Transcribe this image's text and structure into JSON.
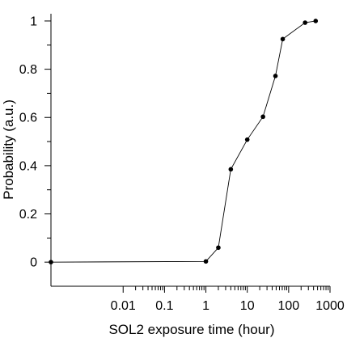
{
  "chart_data": {
    "type": "line",
    "xlabel": "SOL2 exposure time (hour)",
    "ylabel": "Probability (a.u.)",
    "x_scale": "log",
    "xlim": [
      0.00018,
      1000
    ],
    "ylim": [
      -0.1,
      1.03
    ],
    "x_ticks": [
      {
        "value": 0.01,
        "label": "0.01"
      },
      {
        "value": 0.1,
        "label": "0.1"
      },
      {
        "value": 1,
        "label": "1"
      },
      {
        "value": 10,
        "label": "10"
      },
      {
        "value": 100,
        "label": "100"
      },
      {
        "value": 1000,
        "label": "1000"
      }
    ],
    "y_ticks": [
      {
        "value": 0,
        "label": "0"
      },
      {
        "value": 0.2,
        "label": "0.2"
      },
      {
        "value": 0.4,
        "label": "0.4"
      },
      {
        "value": 0.6,
        "label": "0.6"
      },
      {
        "value": 0.8,
        "label": "0.8"
      },
      {
        "value": 1,
        "label": "1"
      }
    ],
    "y_minor_ticks": [
      0.1,
      0.3,
      0.5,
      0.7,
      0.9
    ],
    "grid": false,
    "series": [
      {
        "color": "#000000",
        "points": [
          {
            "x": 0.00018,
            "y": 0.0
          },
          {
            "x": 1,
            "y": 0.003
          },
          {
            "x": 2,
            "y": 0.06
          },
          {
            "x": 4,
            "y": 0.385
          },
          {
            "x": 10,
            "y": 0.508
          },
          {
            "x": 24,
            "y": 0.603
          },
          {
            "x": 48,
            "y": 0.772
          },
          {
            "x": 72,
            "y": 0.925
          },
          {
            "x": 250,
            "y": 0.993
          },
          {
            "x": 450,
            "y": 1.0
          }
        ]
      }
    ]
  }
}
